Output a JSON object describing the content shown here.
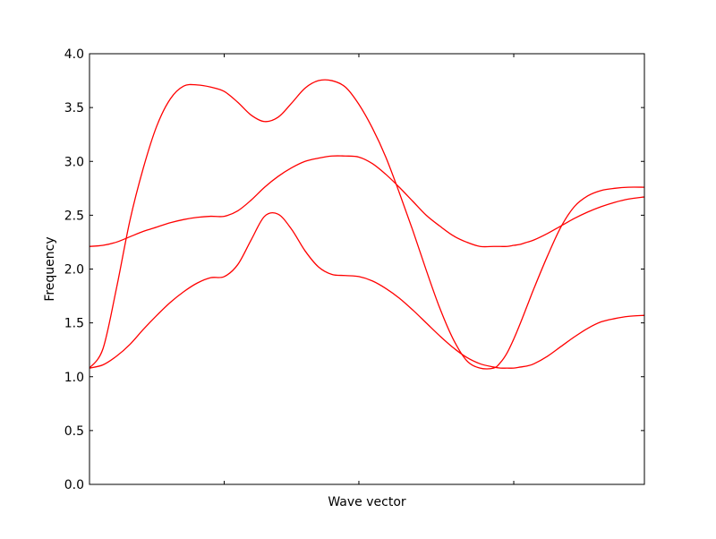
{
  "chart_data": {
    "type": "line",
    "title": "",
    "xlabel": "Wave vector",
    "ylabel": "Frequency",
    "ylim": [
      0.0,
      4.0
    ],
    "xlim": [
      0.0,
      4.12
    ],
    "yticks": [
      "0.0",
      "0.5",
      "1.0",
      "1.5",
      "2.0",
      "2.5",
      "3.0",
      "3.5",
      "4.0"
    ],
    "xticks": [
      1.0,
      2.0,
      3.15
    ],
    "xtick_labels": [],
    "grid": false,
    "legend": "none",
    "line_color": "#ff0000",
    "series": [
      {
        "x": [
          0.0,
          0.1,
          0.2,
          0.3,
          0.4,
          0.5,
          0.6,
          0.7,
          0.8,
          0.9,
          1.0,
          1.1,
          1.2,
          1.3,
          1.4,
          1.5,
          1.6,
          1.7,
          1.8,
          1.9,
          2.0,
          2.1,
          2.2,
          2.3,
          2.4,
          2.5,
          2.6,
          2.7,
          2.8,
          2.9,
          3.0,
          3.05,
          3.1,
          3.15,
          3.2,
          3.25,
          3.3,
          3.4,
          3.5,
          3.6,
          3.7,
          3.8,
          3.9,
          4.0,
          4.12
        ],
        "values": [
          1.08,
          1.11,
          1.19,
          1.3,
          1.44,
          1.57,
          1.69,
          1.79,
          1.87,
          1.92,
          1.93,
          2.04,
          2.27,
          2.49,
          2.51,
          2.37,
          2.17,
          2.02,
          1.95,
          1.94,
          1.93,
          1.89,
          1.82,
          1.73,
          1.62,
          1.5,
          1.38,
          1.27,
          1.18,
          1.12,
          1.09,
          1.08,
          1.08,
          1.08,
          1.09,
          1.1,
          1.12,
          1.19,
          1.28,
          1.37,
          1.45,
          1.51,
          1.54,
          1.56,
          1.57
        ]
      },
      {
        "x": [
          0.0,
          0.1,
          0.2,
          0.3,
          0.4,
          0.5,
          0.6,
          0.7,
          0.8,
          0.9,
          1.0,
          1.1,
          1.2,
          1.3,
          1.4,
          1.5,
          1.6,
          1.7,
          1.8,
          1.9,
          2.0,
          2.1,
          2.2,
          2.3,
          2.4,
          2.5,
          2.6,
          2.7,
          2.8,
          2.9,
          3.0,
          3.05,
          3.1,
          3.15,
          3.2,
          3.25,
          3.3,
          3.4,
          3.5,
          3.6,
          3.7,
          3.8,
          3.9,
          4.0,
          4.12
        ],
        "values": [
          1.08,
          1.26,
          1.82,
          2.45,
          2.94,
          3.33,
          3.58,
          3.7,
          3.71,
          3.69,
          3.65,
          3.55,
          3.43,
          3.37,
          3.41,
          3.54,
          3.68,
          3.75,
          3.75,
          3.69,
          3.53,
          3.31,
          3.04,
          2.71,
          2.36,
          1.99,
          1.64,
          1.35,
          1.15,
          1.08,
          1.08,
          1.13,
          1.22,
          1.35,
          1.5,
          1.66,
          1.82,
          2.12,
          2.39,
          2.58,
          2.68,
          2.73,
          2.75,
          2.76,
          2.76
        ]
      },
      {
        "x": [
          0.0,
          0.1,
          0.2,
          0.3,
          0.4,
          0.5,
          0.6,
          0.7,
          0.8,
          0.9,
          1.0,
          1.1,
          1.2,
          1.3,
          1.4,
          1.5,
          1.6,
          1.7,
          1.8,
          1.9,
          2.0,
          2.1,
          2.2,
          2.3,
          2.4,
          2.5,
          2.6,
          2.7,
          2.8,
          2.9,
          3.0,
          3.05,
          3.1,
          3.15,
          3.2,
          3.25,
          3.3,
          3.4,
          3.5,
          3.6,
          3.7,
          3.8,
          3.9,
          4.0,
          4.12
        ],
        "values": [
          2.21,
          2.22,
          2.25,
          2.3,
          2.35,
          2.39,
          2.43,
          2.46,
          2.48,
          2.49,
          2.49,
          2.54,
          2.64,
          2.76,
          2.86,
          2.94,
          3.0,
          3.03,
          3.05,
          3.05,
          3.04,
          2.98,
          2.88,
          2.76,
          2.63,
          2.5,
          2.4,
          2.31,
          2.25,
          2.21,
          2.21,
          2.21,
          2.21,
          2.22,
          2.23,
          2.25,
          2.27,
          2.33,
          2.4,
          2.47,
          2.53,
          2.58,
          2.62,
          2.65,
          2.67
        ]
      }
    ]
  }
}
